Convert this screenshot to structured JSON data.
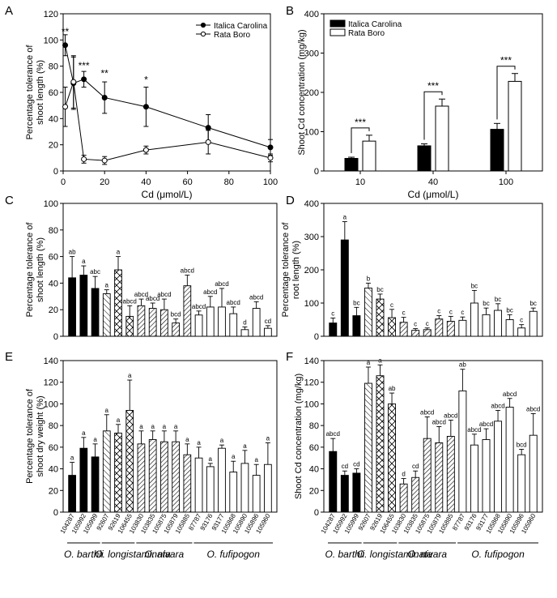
{
  "chart_data": [
    {
      "panel": "A",
      "type": "line",
      "xlabel": "Cd (μmol/L)",
      "ylabel": "Percentage tolerance of shoot length (%)",
      "xlim": [
        0,
        100
      ],
      "ylim": [
        0,
        120
      ],
      "xticks": [
        0,
        20,
        40,
        60,
        80,
        100
      ],
      "yticks": [
        0,
        20,
        40,
        60,
        80,
        100,
        120
      ],
      "legend_position": "top-right",
      "series": [
        {
          "name": "Italica Carolina",
          "marker": "filled-circle",
          "x": [
            1,
            5,
            10,
            20,
            40,
            70,
            100
          ],
          "y": [
            96,
            67,
            70,
            56,
            49,
            33,
            18
          ],
          "err": [
            8,
            20,
            6,
            12,
            15,
            10,
            6
          ]
        },
        {
          "name": "Rata Boro",
          "marker": "open-circle",
          "x": [
            1,
            5,
            10,
            20,
            40,
            70,
            100
          ],
          "y": [
            49,
            68,
            9,
            8,
            16,
            22,
            10
          ],
          "err": [
            15,
            20,
            3,
            3,
            3,
            9,
            3
          ]
        }
      ],
      "annotations": [
        {
          "text": "**",
          "x": 1,
          "y": 104
        },
        {
          "text": "***",
          "x": 10,
          "y": 78
        },
        {
          "text": "**",
          "x": 20,
          "y": 72
        },
        {
          "text": "*",
          "x": 40,
          "y": 67
        }
      ]
    },
    {
      "panel": "B",
      "type": "bar",
      "xlabel": "Cd (μmol/L)",
      "ylabel": "Shoot Cd concentration (mg/kg)",
      "ylim": [
        0,
        400
      ],
      "yticks": [
        0,
        100,
        200,
        300,
        400
      ],
      "categories": [
        "10",
        "40",
        "100"
      ],
      "legend_position": "top-left",
      "series": [
        {
          "name": "Italica Carolina",
          "fill": "black",
          "values": [
            32,
            64,
            106
          ],
          "err": [
            3,
            5,
            15
          ]
        },
        {
          "name": "Rata Boro",
          "fill": "white",
          "values": [
            76,
            165,
            228
          ],
          "err": [
            15,
            18,
            20
          ]
        }
      ],
      "annotations": [
        "***",
        "***",
        "***"
      ]
    },
    {
      "panel": "C",
      "type": "bar",
      "ylabel": "Percentage tolerance of shoot length (%)",
      "ylim": [
        0,
        100
      ],
      "yticks": [
        0,
        20,
        40,
        60,
        80,
        100
      ],
      "values": [
        44,
        46,
        36,
        32,
        50,
        15,
        23,
        21,
        20,
        10,
        38,
        16,
        22,
        22,
        17,
        5,
        21,
        6
      ],
      "err": [
        16,
        7,
        9,
        3,
        10,
        8,
        5,
        4,
        8,
        3,
        8,
        3,
        8,
        14,
        5,
        2,
        5,
        2
      ],
      "letters": [
        "ab",
        "a",
        "abc",
        "a",
        "a",
        "abcd",
        "abcd",
        "abcd",
        "abcd",
        "bcd",
        "abcd",
        "abcd",
        "abcd",
        "abcd",
        "abcd",
        "d",
        "abcd",
        "cd"
      ]
    },
    {
      "panel": "D",
      "type": "bar",
      "ylabel": "Percentage tolerance of root length (%)",
      "ylim": [
        0,
        400
      ],
      "yticks": [
        0,
        100,
        200,
        300,
        400
      ],
      "values": [
        40,
        290,
        62,
        145,
        112,
        56,
        42,
        18,
        20,
        52,
        45,
        48,
        100,
        65,
        78,
        50,
        25,
        75
      ],
      "err": [
        15,
        55,
        25,
        15,
        15,
        25,
        15,
        5,
        5,
        10,
        15,
        10,
        38,
        20,
        20,
        15,
        10,
        10
      ],
      "letters": [
        "c",
        "a",
        "bc",
        "b",
        "bc",
        "c",
        "c",
        "c",
        "c",
        "c",
        "c",
        "c",
        "bc",
        "bc",
        "bc",
        "bc",
        "c",
        "bc"
      ]
    },
    {
      "panel": "E",
      "type": "bar",
      "ylabel": "Percentage tolerance of shoot dry weight (%)",
      "ylim": [
        0,
        140
      ],
      "yticks": [
        0,
        20,
        40,
        60,
        80,
        100,
        120,
        140
      ],
      "values": [
        34,
        59,
        51,
        75,
        73,
        94,
        63,
        67,
        65,
        65,
        53,
        50,
        42,
        59,
        37,
        45,
        34,
        44
      ],
      "err": [
        12,
        10,
        12,
        15,
        8,
        28,
        12,
        8,
        10,
        10,
        10,
        10,
        3,
        3,
        10,
        12,
        10,
        20
      ],
      "letters": [
        "a",
        "a",
        "a",
        "a",
        "a",
        "a",
        "a",
        "a",
        "a",
        "a",
        "a",
        "a",
        "a",
        "a",
        "a",
        "a",
        "a",
        "a"
      ]
    },
    {
      "panel": "F",
      "type": "bar",
      "ylabel": "Shoot Cd concentration (mg/kg)",
      "ylim": [
        0,
        140
      ],
      "yticks": [
        0,
        20,
        40,
        60,
        80,
        100,
        120,
        140
      ],
      "values": [
        56,
        34,
        36,
        119,
        126,
        100,
        26,
        32,
        68,
        64,
        70,
        112,
        62,
        67,
        84,
        97,
        53,
        71
      ],
      "err": [
        12,
        4,
        4,
        15,
        10,
        10,
        5,
        6,
        20,
        15,
        15,
        20,
        10,
        10,
        10,
        8,
        5,
        20
      ],
      "letters": [
        "abcd",
        "cd",
        "cd",
        "a",
        "a",
        "ab",
        "d",
        "cd",
        "abcd",
        "abcd",
        "abcd",
        "ab",
        "abcd",
        "abcd",
        "abcd",
        "abcd",
        "bcd",
        "abcd"
      ]
    }
  ],
  "accessions": [
    "104287",
    "105992",
    "105999",
    "92607",
    "92619",
    "106455",
    "103830",
    "103835",
    "105875",
    "105879",
    "105885",
    "87787",
    "93176",
    "93177",
    "105868",
    "105890",
    "105896",
    "105960"
  ],
  "fills": [
    "black",
    "black",
    "black",
    "diag-up",
    "cross",
    "cross",
    "diag",
    "diag",
    "diag",
    "diag",
    "diag",
    "white",
    "white",
    "white",
    "white",
    "white",
    "white",
    "white"
  ],
  "species_groups": [
    {
      "label": "O. barthii",
      "from": 0,
      "to": 2
    },
    {
      "label": "O. longistaminata",
      "from": 3,
      "to": 5
    },
    {
      "label": "O. nivara",
      "from": 6,
      "to": 10
    },
    {
      "label": "O. fufipogon",
      "from": 11,
      "to": 17
    }
  ],
  "panel_letters": [
    "A",
    "B",
    "C",
    "D",
    "E",
    "F"
  ],
  "colors": {
    "ink": "#000000",
    "paper": "#ffffff"
  }
}
